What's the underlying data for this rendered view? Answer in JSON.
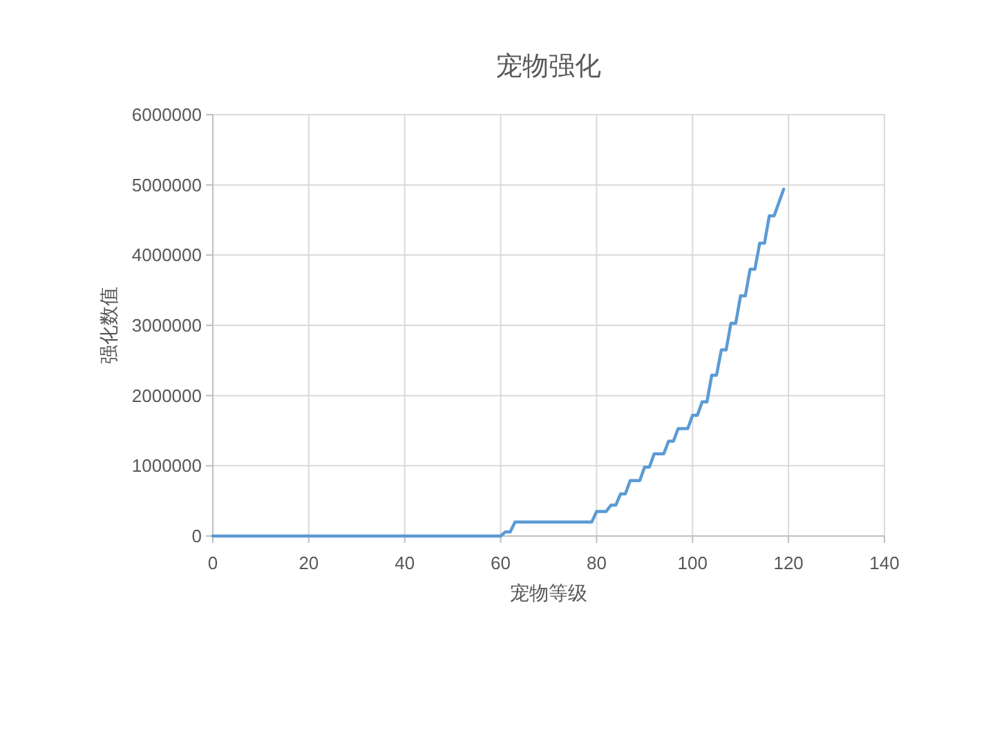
{
  "chart_data": {
    "type": "line",
    "title": "宠物强化",
    "xlabel": "宠物等级",
    "ylabel": "强化数值",
    "x": [
      0,
      60,
      61,
      62,
      63,
      79,
      80,
      82,
      83,
      84,
      85,
      86,
      87,
      89,
      90,
      91,
      92,
      94,
      95,
      96,
      97,
      99,
      100,
      101,
      102,
      103,
      104,
      105,
      106,
      107,
      108,
      109,
      110,
      111,
      112,
      113,
      114,
      115,
      116,
      117,
      119
    ],
    "series": [
      {
        "color": "#5b9bd5",
        "values": [
          0,
          0,
          60000,
          60000,
          200000,
          200000,
          350000,
          350000,
          440000,
          440000,
          600000,
          600000,
          790000,
          790000,
          980000,
          980000,
          1170000,
          1170000,
          1350000,
          1350000,
          1530000,
          1530000,
          1720000,
          1720000,
          1910000,
          1910000,
          2290000,
          2290000,
          2650000,
          2650000,
          3030000,
          3030000,
          3420000,
          3420000,
          3800000,
          3800000,
          4170000,
          4170000,
          4560000,
          4560000,
          4940000
        ]
      }
    ],
    "xlim": [
      0,
      140
    ],
    "xticks": [
      0,
      20,
      40,
      60,
      80,
      100,
      120,
      140
    ],
    "ylim": [
      0,
      6000000
    ],
    "yticks": [
      0,
      1000000,
      2000000,
      3000000,
      4000000,
      5000000,
      6000000
    ],
    "grid": true,
    "marker": "none",
    "line_style": "solid"
  }
}
